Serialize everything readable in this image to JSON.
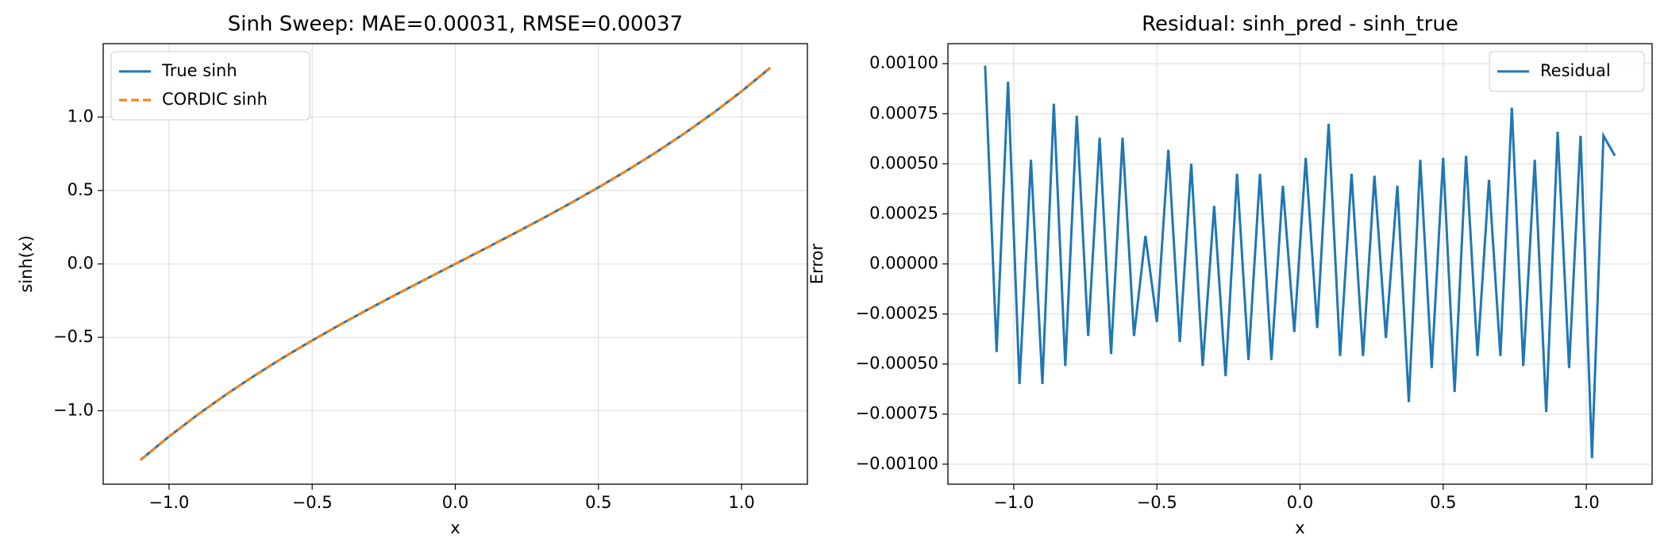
{
  "chart_data": [
    {
      "type": "line",
      "title": "Sinh Sweep: MAE=0.00031, RMSE=0.00037",
      "xlabel": "x",
      "ylabel": "sinh(x)",
      "x": [
        -1.1,
        -1.0,
        -0.9,
        -0.8,
        -0.7,
        -0.6,
        -0.5,
        -0.4,
        -0.3,
        -0.2,
        -0.1,
        0.0,
        0.1,
        0.2,
        0.3,
        0.4,
        0.5,
        0.6,
        0.7,
        0.8,
        0.9,
        1.0,
        1.1
      ],
      "series": [
        {
          "name": "True sinh",
          "color": "#1f77b4",
          "dash": false,
          "values": [
            -1.3356,
            -1.1752,
            -1.0265,
            -0.8881,
            -0.7586,
            -0.6367,
            -0.5211,
            -0.4108,
            -0.3045,
            -0.2013,
            -0.1002,
            0.0,
            0.1002,
            0.2013,
            0.3045,
            0.4108,
            0.5211,
            0.6367,
            0.7586,
            0.8881,
            1.0265,
            1.1752,
            1.3356
          ]
        },
        {
          "name": "CORDIC sinh",
          "color": "#ff7f0e",
          "dash": true,
          "values": [
            -1.3359,
            -1.1749,
            -1.0268,
            -0.8878,
            -0.7589,
            -0.6364,
            -0.5214,
            -0.4105,
            -0.3048,
            -0.201,
            -0.1005,
            0.0003,
            0.0999,
            0.2016,
            0.3042,
            0.4111,
            0.5208,
            0.637,
            0.7583,
            0.8884,
            1.0262,
            1.1755,
            1.3361
          ]
        }
      ],
      "xlim": [
        -1.23,
        1.23
      ],
      "ylim": [
        -1.5,
        1.5
      ],
      "xticks": [
        {
          "value": -1.0,
          "label": "−1.0"
        },
        {
          "value": -0.5,
          "label": "−0.5"
        },
        {
          "value": 0.0,
          "label": "0.0"
        },
        0.5,
        {
          "value": 1.0,
          "label": "1.0"
        }
      ],
      "yticks": [
        {
          "value": -1.0,
          "label": "−1.0"
        },
        {
          "value": -0.5,
          "label": "−0.5"
        },
        {
          "value": 0.0,
          "label": "0.0"
        },
        0.5,
        {
          "value": 1.0,
          "label": "1.0"
        }
      ],
      "grid": true,
      "legend": "upper left"
    },
    {
      "type": "line",
      "title": "Residual: sinh_pred - sinh_true",
      "xlabel": "x",
      "ylabel": "Error",
      "x": [
        -1.1,
        -1.06,
        -1.02,
        -0.98,
        -0.94,
        -0.9,
        -0.86,
        -0.82,
        -0.78,
        -0.74,
        -0.7,
        -0.66,
        -0.62,
        -0.58,
        -0.54,
        -0.5,
        -0.46,
        -0.42,
        -0.38,
        -0.34,
        -0.3,
        -0.26,
        -0.22,
        -0.18,
        -0.14,
        -0.1,
        -0.06,
        -0.02,
        0.02,
        0.06,
        0.1,
        0.14,
        0.18,
        0.22,
        0.26,
        0.3,
        0.34,
        0.38,
        0.42,
        0.46,
        0.5,
        0.54,
        0.58,
        0.62,
        0.66,
        0.7,
        0.74,
        0.78,
        0.82,
        0.86,
        0.9,
        0.94,
        0.98,
        1.02,
        1.06,
        1.1
      ],
      "series": [
        {
          "name": "Residual",
          "color": "#1f77b4",
          "dash": false,
          "values": [
            0.00099,
            -0.00044,
            0.00091,
            -0.0006,
            0.00052,
            -0.0006,
            0.0008,
            -0.00051,
            0.00074,
            -0.00036,
            0.00063,
            -0.00045,
            0.00063,
            -0.00036,
            0.00014,
            -0.00029,
            0.00057,
            -0.00039,
            0.0005,
            -0.00051,
            0.00029,
            -0.00056,
            0.00045,
            -0.00048,
            0.00045,
            -0.00048,
            0.00039,
            -0.00034,
            0.00053,
            -0.00032,
            0.0007,
            -0.00046,
            0.00045,
            -0.00046,
            0.00044,
            -0.00037,
            0.00039,
            -0.00069,
            0.00052,
            -0.00052,
            0.00053,
            -0.00064,
            0.00054,
            -0.00046,
            0.00042,
            -0.00046,
            0.00078,
            -0.00051,
            0.00052,
            -0.00074,
            0.00066,
            -0.00052,
            0.00064,
            -0.00097,
            0.00064,
            0.00054
          ]
        }
      ],
      "xlim": [
        -1.23,
        1.23
      ],
      "ylim": [
        -0.0011,
        0.0011
      ],
      "xticks": [
        {
          "value": -1.0,
          "label": "−1.0"
        },
        {
          "value": -0.5,
          "label": "−0.5"
        },
        {
          "value": 0.0,
          "label": "0.0"
        },
        0.5,
        {
          "value": 1.0,
          "label": "1.0"
        }
      ],
      "yticks": [
        {
          "value": -0.001,
          "label": "−0.00100"
        },
        {
          "value": -0.00075,
          "label": "−0.00075"
        },
        {
          "value": -0.0005,
          "label": "−0.00050"
        },
        {
          "value": -0.00025,
          "label": "−0.00025"
        },
        {
          "value": 0.0,
          "label": "0.00000"
        },
        {
          "value": 0.00025,
          "label": "0.00025"
        },
        {
          "value": 0.0005,
          "label": "0.00050"
        },
        {
          "value": 0.00075,
          "label": "0.00075"
        },
        {
          "value": 0.001,
          "label": "0.00100"
        }
      ],
      "grid": true,
      "legend": "upper right"
    }
  ]
}
